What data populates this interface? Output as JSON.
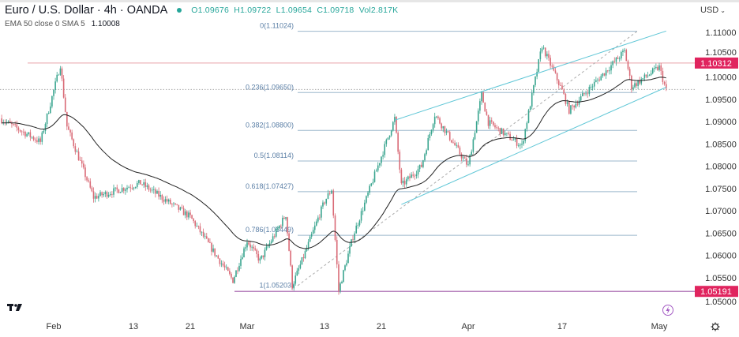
{
  "header": {
    "title": "Euro / U.S. Dollar · 4h · OANDA",
    "open": "O1.09676",
    "high": "H1.09722",
    "low": "L1.09654",
    "close": "C1.09718",
    "volume": "Vol2.817K",
    "indicator_label": "EMA 50 close 0 SMA 5",
    "indicator_value": "1.10008",
    "currency": "USD",
    "currency_icon": "chevron-down-icon"
  },
  "colors": {
    "up": "#3aa58f",
    "down": "#d96a76",
    "ema": "#222222",
    "fib": "#9bb7cc",
    "channel": "#5ec6d6",
    "badge": "#e0245e",
    "support": "#a05aa8",
    "resistance": "#e8a0a8"
  },
  "chart_data": {
    "type": "candlestick",
    "symbol": "EURUSD",
    "timeframe": "4h",
    "ylim": [
      1.0485,
      1.1135
    ],
    "y_ticks": [
      "1.11000",
      "1.10500",
      "1.10000",
      "1.09500",
      "1.09000",
      "1.08500",
      "1.08000",
      "1.07500",
      "1.07000",
      "1.06500",
      "1.06000",
      "1.05500",
      "1.05000"
    ],
    "x_ticks": [
      "Feb",
      "13",
      "21",
      "Mar",
      "13",
      "21",
      "Apr",
      "17",
      "May"
    ],
    "price_path": [
      {
        "date": "01-25",
        "price": 1.0907
      },
      {
        "date": "01-30",
        "price": 1.0854
      },
      {
        "date": "02-02",
        "price": 1.1027
      },
      {
        "date": "02-03",
        "price": 1.0889
      },
      {
        "date": "02-07",
        "price": 1.073
      },
      {
        "date": "02-14",
        "price": 1.0762
      },
      {
        "date": "02-21",
        "price": 1.0686
      },
      {
        "date": "02-27",
        "price": 1.0544
      },
      {
        "date": "03-01",
        "price": 1.0633
      },
      {
        "date": "03-03",
        "price": 1.0588
      },
      {
        "date": "03-07",
        "price": 1.0691
      },
      {
        "date": "03-08",
        "price": 1.0532
      },
      {
        "date": "03-10",
        "price": 1.0606
      },
      {
        "date": "03-13",
        "price": 1.0721
      },
      {
        "date": "03-14",
        "price": 1.0748
      },
      {
        "date": "03-15",
        "price": 1.0521
      },
      {
        "date": "03-17",
        "price": 1.0642
      },
      {
        "date": "03-23",
        "price": 1.0907
      },
      {
        "date": "03-24",
        "price": 1.0756
      },
      {
        "date": "03-27",
        "price": 1.08
      },
      {
        "date": "03-29",
        "price": 1.0916
      },
      {
        "date": "04-03",
        "price": 1.08
      },
      {
        "date": "04-05",
        "price": 1.096
      },
      {
        "date": "04-06",
        "price": 1.0898
      },
      {
        "date": "04-11",
        "price": 1.0845
      },
      {
        "date": "04-14",
        "price": 1.107
      },
      {
        "date": "04-17",
        "price": 1.0969
      },
      {
        "date": "04-18",
        "price": 1.0925
      },
      {
        "date": "04-26",
        "price": 1.1058
      },
      {
        "date": "04-27",
        "price": 1.0978
      },
      {
        "date": "05-01",
        "price": 1.1022
      },
      {
        "date": "05-02",
        "price": 1.0969
      }
    ],
    "ema_period": 50,
    "fibonacci": [
      {
        "label": "0(1.11024)",
        "value": 1.11024
      },
      {
        "label": "0.236(1.09650)",
        "value": 1.0965
      },
      {
        "label": "0.382(1.08800)",
        "value": 1.088
      },
      {
        "label": "0.5(1.08114)",
        "value": 1.08114
      },
      {
        "label": "0.618(1.07427)",
        "value": 1.07427
      },
      {
        "label": "0.786(1.06449)",
        "value": 1.06449
      },
      {
        "label": "1(1.05203)",
        "value": 1.05203
      }
    ],
    "horizontal_levels": [
      {
        "label": "1.10312",
        "value": 1.10312
      },
      {
        "label": "1.05191",
        "value": 1.05191
      }
    ],
    "last_price": 1.09718,
    "channel": {
      "upper": [
        {
          "date": "03-23",
          "price": 1.0903
        },
        {
          "date": "05-02",
          "price": 1.1103
        }
      ],
      "lower": [
        {
          "date": "03-24",
          "price": 1.0714
        },
        {
          "date": "05-02",
          "price": 1.0977
        }
      ]
    },
    "grid": false
  },
  "icons": {
    "logo": "tradingview-logo",
    "lightning": "lightning-icon",
    "settings": "gear-icon"
  }
}
